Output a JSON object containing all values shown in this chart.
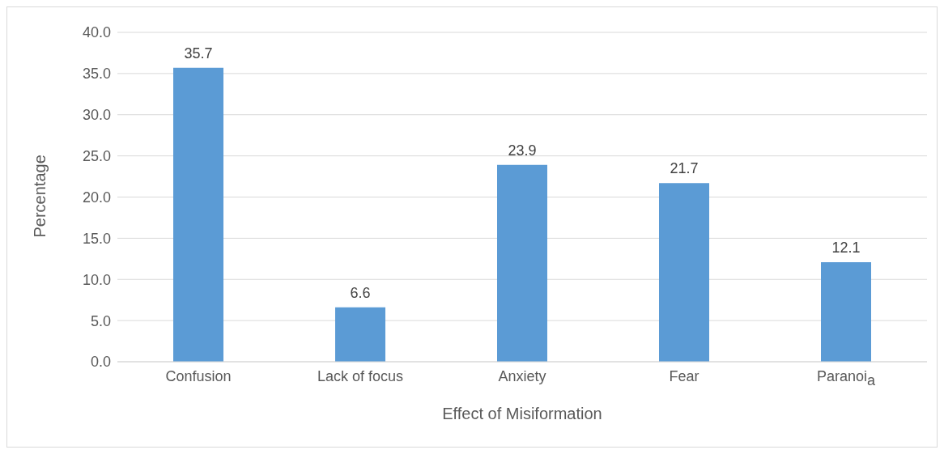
{
  "chart_data": {
    "type": "bar",
    "xlabel": "Effect of Misiformation",
    "ylabel": "Percentage",
    "categories": [
      "Confusion",
      "Lack of focus",
      "Anxiety",
      "Fear",
      "Paranoi$_{a}$"
    ],
    "values": [
      35.7,
      6.6,
      23.9,
      21.7,
      12.1
    ],
    "color": "#5b9bd5",
    "ylim": [
      0,
      40
    ],
    "yticks": [
      {
        "value": 0,
        "label": "0.0"
      },
      {
        "value": 5,
        "label": "5.0"
      },
      {
        "value": 10,
        "label": "10.0"
      },
      {
        "value": 15,
        "label": "15.0"
      },
      {
        "value": 20,
        "label": "20.0"
      },
      {
        "value": 25,
        "label": "25.0"
      },
      {
        "value": 30,
        "label": "30.0"
      },
      {
        "value": 35,
        "label": "35.0"
      },
      {
        "value": 40,
        "label": "40.0"
      }
    ],
    "grid": "y",
    "data_labels": true,
    "legend": false
  }
}
